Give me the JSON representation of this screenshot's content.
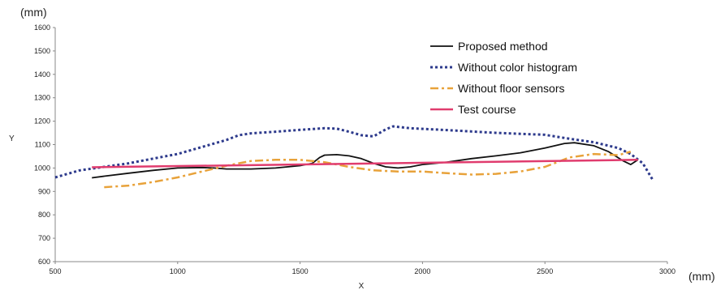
{
  "chart_data": {
    "type": "line",
    "title": "",
    "xlabel": "X",
    "ylabel": "Y",
    "x_unit": "(mm)",
    "y_unit": "(mm)",
    "xlim": [
      500,
      3000
    ],
    "ylim": [
      600,
      1600
    ],
    "x_ticks": [
      500,
      1000,
      1500,
      2000,
      2500,
      3000
    ],
    "y_ticks": [
      600,
      700,
      800,
      900,
      1000,
      1100,
      1200,
      1300,
      1400,
      1500,
      1600
    ],
    "grid": false,
    "legend_position": "top-right",
    "series": [
      {
        "name": "Proposed method",
        "color": "#111111",
        "style": "solid",
        "points": [
          [
            650,
            958
          ],
          [
            700,
            965
          ],
          [
            800,
            978
          ],
          [
            900,
            990
          ],
          [
            1000,
            1000
          ],
          [
            1100,
            1002
          ],
          [
            1150,
            1000
          ],
          [
            1200,
            996
          ],
          [
            1300,
            996
          ],
          [
            1400,
            1000
          ],
          [
            1500,
            1010
          ],
          [
            1550,
            1020
          ],
          [
            1580,
            1045
          ],
          [
            1600,
            1055
          ],
          [
            1650,
            1057
          ],
          [
            1700,
            1052
          ],
          [
            1750,
            1040
          ],
          [
            1800,
            1020
          ],
          [
            1850,
            1005
          ],
          [
            1900,
            1000
          ],
          [
            1950,
            1005
          ],
          [
            2000,
            1015
          ],
          [
            2100,
            1025
          ],
          [
            2200,
            1040
          ],
          [
            2300,
            1052
          ],
          [
            2400,
            1065
          ],
          [
            2500,
            1085
          ],
          [
            2580,
            1105
          ],
          [
            2620,
            1108
          ],
          [
            2700,
            1095
          ],
          [
            2760,
            1070
          ],
          [
            2820,
            1030
          ],
          [
            2850,
            1015
          ],
          [
            2880,
            1035
          ]
        ]
      },
      {
        "name": "Without color histogram",
        "color": "#2d3a8c",
        "style": "dotted",
        "points": [
          [
            500,
            960
          ],
          [
            600,
            990
          ],
          [
            700,
            1005
          ],
          [
            800,
            1020
          ],
          [
            900,
            1040
          ],
          [
            1000,
            1060
          ],
          [
            1100,
            1090
          ],
          [
            1200,
            1120
          ],
          [
            1250,
            1140
          ],
          [
            1300,
            1148
          ],
          [
            1400,
            1155
          ],
          [
            1500,
            1163
          ],
          [
            1600,
            1170
          ],
          [
            1650,
            1168
          ],
          [
            1700,
            1155
          ],
          [
            1750,
            1140
          ],
          [
            1800,
            1135
          ],
          [
            1850,
            1165
          ],
          [
            1880,
            1178
          ],
          [
            1950,
            1170
          ],
          [
            2100,
            1162
          ],
          [
            2300,
            1150
          ],
          [
            2500,
            1142
          ],
          [
            2600,
            1125
          ],
          [
            2700,
            1110
          ],
          [
            2800,
            1085
          ],
          [
            2850,
            1060
          ],
          [
            2900,
            1020
          ],
          [
            2940,
            950
          ]
        ]
      },
      {
        "name": "Without floor sensors",
        "color": "#e8a23a",
        "style": "dashdot",
        "points": [
          [
            700,
            918
          ],
          [
            800,
            925
          ],
          [
            900,
            940
          ],
          [
            1000,
            960
          ],
          [
            1100,
            985
          ],
          [
            1200,
            1010
          ],
          [
            1300,
            1030
          ],
          [
            1400,
            1035
          ],
          [
            1500,
            1035
          ],
          [
            1600,
            1025
          ],
          [
            1700,
            1005
          ],
          [
            1800,
            990
          ],
          [
            1900,
            985
          ],
          [
            2000,
            985
          ],
          [
            2100,
            978
          ],
          [
            2200,
            972
          ],
          [
            2300,
            975
          ],
          [
            2400,
            985
          ],
          [
            2500,
            1005
          ],
          [
            2600,
            1045
          ],
          [
            2700,
            1060
          ],
          [
            2800,
            1055
          ],
          [
            2850,
            1070
          ]
        ]
      },
      {
        "name": "Test course",
        "color": "#e03c6e",
        "style": "solid",
        "points": [
          [
            650,
            1003
          ],
          [
            2880,
            1035
          ]
        ]
      }
    ]
  }
}
